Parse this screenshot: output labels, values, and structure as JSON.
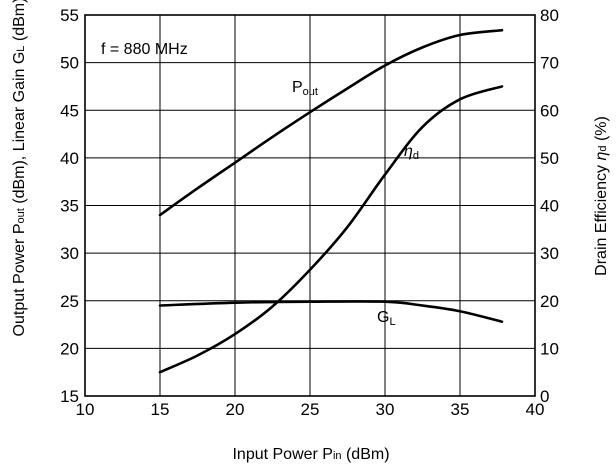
{
  "chart_data": {
    "type": "line",
    "annotation": "f = 880 MHz",
    "xlabel": {
      "main": "Input Power  P",
      "sub": "in",
      "tail": " (dBm)"
    },
    "ylabel_left": {
      "a": "Output Power  P",
      "a_sub": "out",
      "b": " (dBm), Linear Gain  G",
      "b_sub": "L",
      "c": "  (dBm)"
    },
    "ylabel_right": {
      "a": "Drain Efficiency  ",
      "a_sym": "η",
      "a_sub": "d",
      "c": " (%)"
    },
    "x_range": [
      10,
      40
    ],
    "x_ticks": [
      "10",
      "15",
      "20",
      "25",
      "30",
      "35",
      "40"
    ],
    "y_left_range": [
      15,
      55
    ],
    "y_left_ticks": [
      "15",
      "20",
      "25",
      "30",
      "35",
      "40",
      "45",
      "50",
      "55"
    ],
    "y_right_range": [
      0,
      80
    ],
    "y_right_ticks": [
      "0",
      "10",
      "20",
      "30",
      "40",
      "50",
      "60",
      "70",
      "80"
    ],
    "grid": true,
    "series": [
      {
        "name": "P",
        "name_sub": "out",
        "axis": "left",
        "x": [
          15,
          17.5,
          20,
          22.5,
          25,
          27.5,
          30,
          32.5,
          35,
          37.8
        ],
        "y": [
          34.0,
          36.8,
          39.5,
          42.2,
          44.8,
          47.3,
          49.7,
          51.6,
          52.9,
          53.4
        ]
      },
      {
        "name": "η",
        "name_sub": "d",
        "axis": "right",
        "x": [
          15,
          17.5,
          20,
          22.5,
          25,
          27.5,
          30,
          32.5,
          35,
          37.8
        ],
        "y": [
          5.0,
          8.5,
          13.0,
          18.8,
          26.5,
          35.5,
          46.5,
          56.5,
          62.3,
          65.0
        ]
      },
      {
        "name": "G",
        "name_sub": "L",
        "axis": "left",
        "x": [
          15,
          20,
          25,
          30,
          32.5,
          35,
          37.8
        ],
        "y": [
          24.5,
          24.8,
          24.9,
          24.9,
          24.5,
          23.9,
          22.8
        ]
      }
    ]
  }
}
